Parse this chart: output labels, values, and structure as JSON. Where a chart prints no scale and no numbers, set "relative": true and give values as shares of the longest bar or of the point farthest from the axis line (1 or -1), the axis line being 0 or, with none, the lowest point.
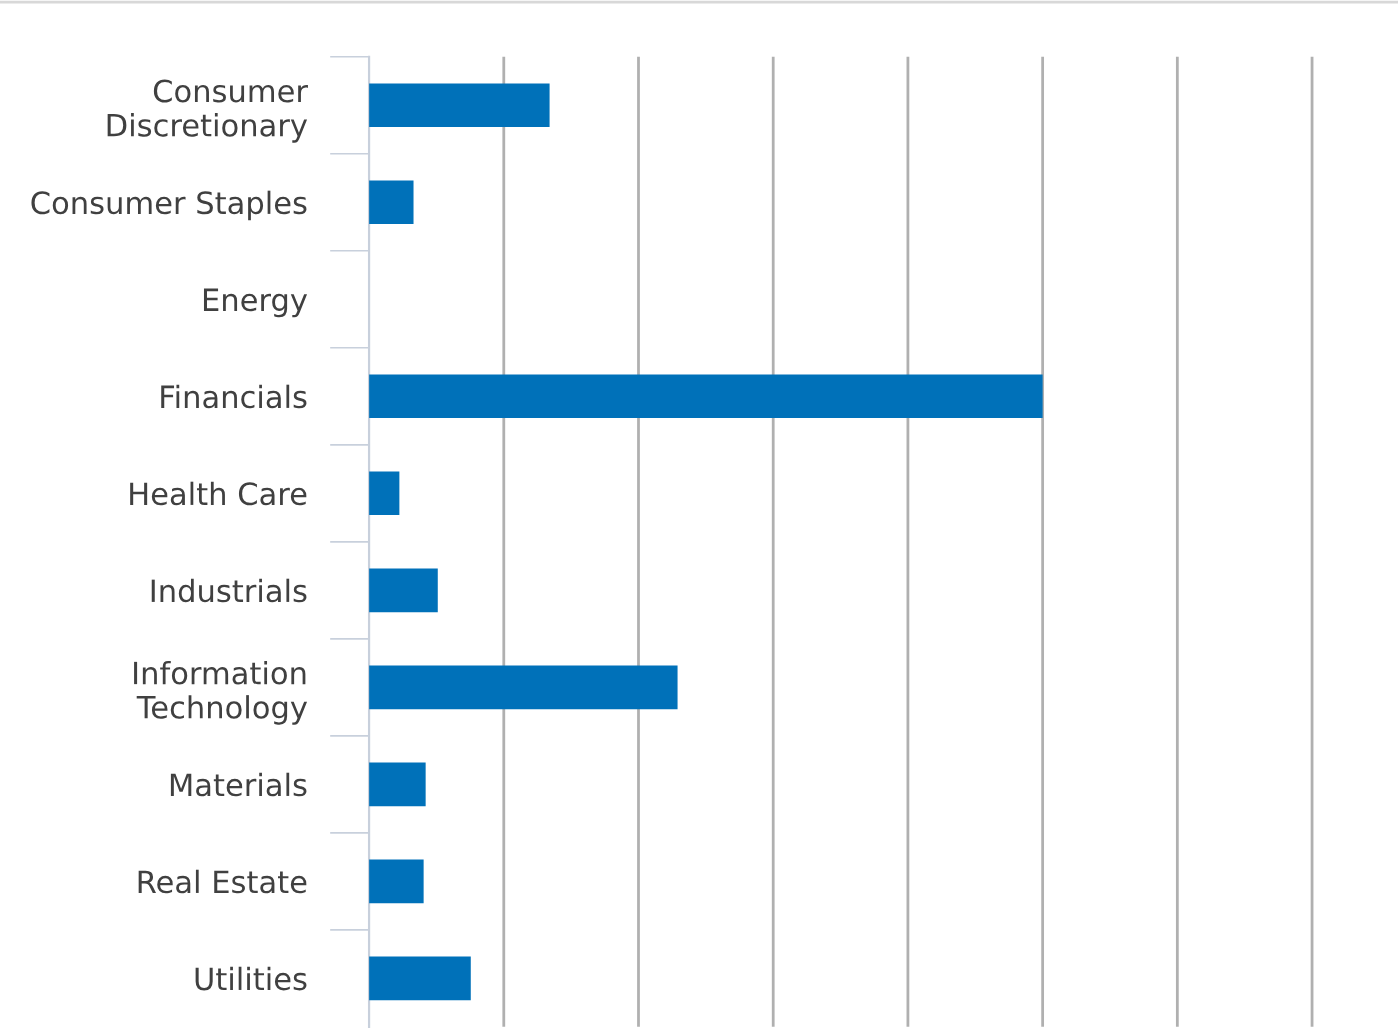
{
  "chart_data": {
    "type": "bar",
    "orientation": "horizontal",
    "relative": true,
    "categories": [
      "Consumer\nDiscretionary",
      "Consumer Staples",
      "Energy",
      "Financials",
      "Health Care",
      "Industrials",
      "Information\nTechnology",
      "Materials",
      "Real Estate",
      "Utilities"
    ],
    "values": [
      0.268,
      0.066,
      0,
      1,
      0.045,
      0.102,
      0.458,
      0.084,
      0.081,
      0.151
    ],
    "color": "#0071b9",
    "grid": "x",
    "tick_labels": "y"
  }
}
